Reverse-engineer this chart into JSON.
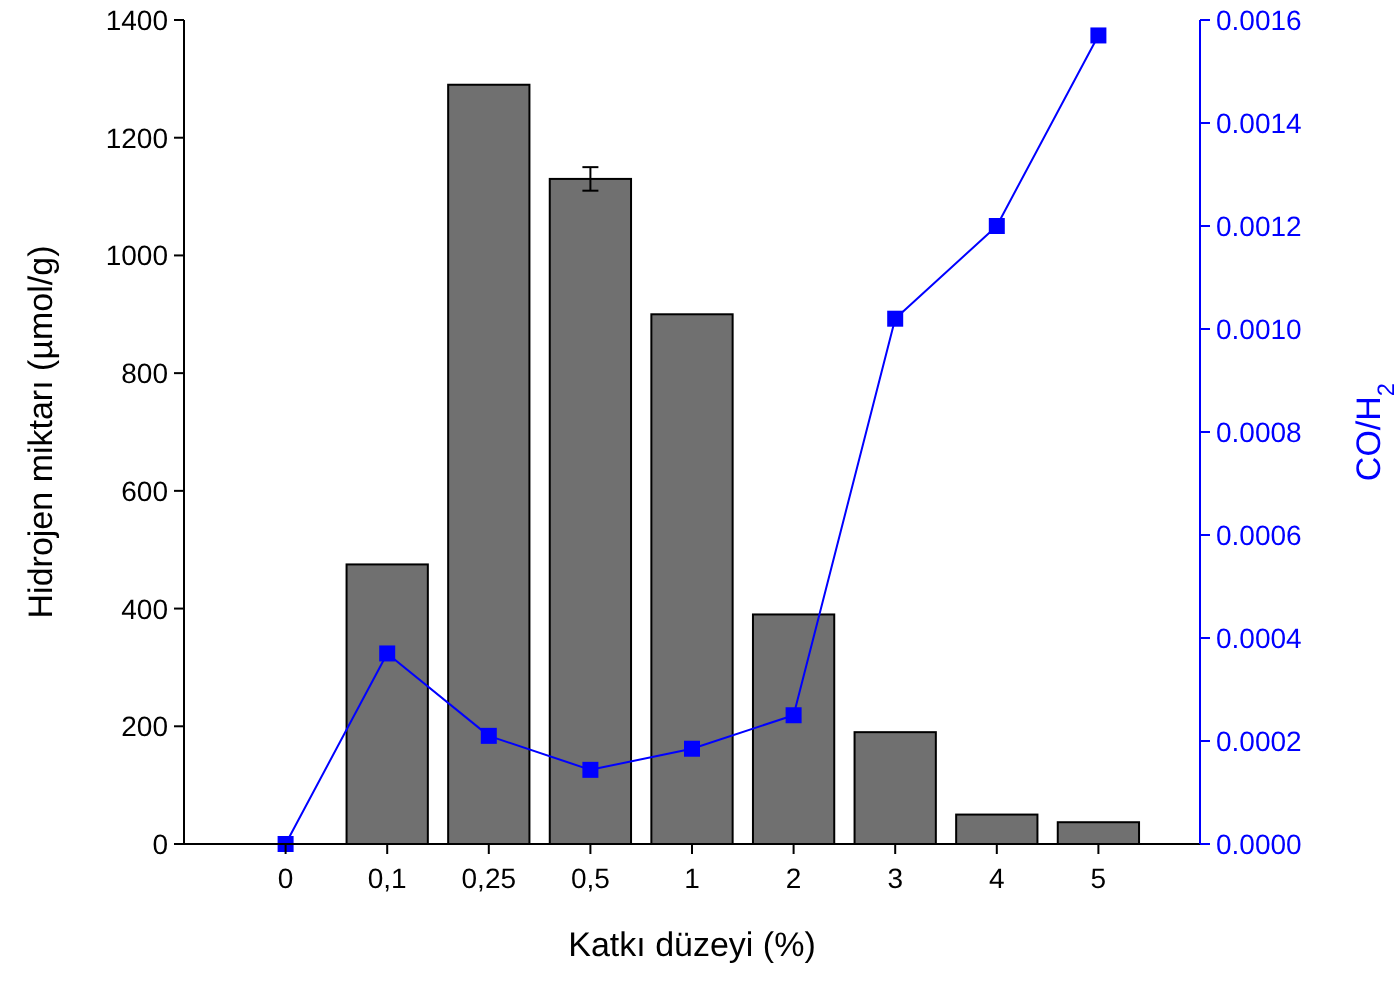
{
  "chart_data": {
    "type": "bar",
    "xlabel": "Katkı düzeyi (%)",
    "ylabel": "Hidrojen miktarı (µmol/g)",
    "y2label": "CO/H$_{2}$",
    "categories": [
      "0",
      "0,1",
      "0,25",
      "0,5",
      "1",
      "2",
      "3",
      "4",
      "5"
    ],
    "ylim": [
      0,
      1400
    ],
    "yticks": [
      0,
      200,
      400,
      600,
      800,
      1000,
      1200,
      1400
    ],
    "y2lim": [
      0,
      0.0016
    ],
    "y2ticks": [
      {
        "value": 0,
        "label": "0.0000"
      },
      {
        "value": 0.0002,
        "label": "0.0002"
      },
      {
        "value": 0.0004,
        "label": "0.0004"
      },
      {
        "value": 0.0006,
        "label": "0.0006"
      },
      {
        "value": 0.0008,
        "label": "0.0008"
      },
      {
        "value": 0.001,
        "label": "0.0010"
      },
      {
        "value": 0.0012,
        "label": "0.0012"
      },
      {
        "value": 0.0014,
        "label": "0.0014"
      },
      {
        "value": 0.0016,
        "label": "0.0016"
      }
    ],
    "marker": "square",
    "grid": false,
    "series": [
      {
        "color": "#707070",
        "values": [
          0,
          475,
          1290,
          1130,
          900,
          390,
          190,
          50,
          37
        ],
        "errors": [
          null,
          null,
          null,
          20,
          null,
          null,
          null,
          null,
          null
        ]
      },
      {
        "type": "line",
        "axis": "y2",
        "color": "#0000ff",
        "values": [
          0,
          0.00037,
          0.00021,
          0.000144,
          0.000185,
          0.00025,
          0.00102,
          0.0012,
          0.00157
        ]
      }
    ]
  }
}
